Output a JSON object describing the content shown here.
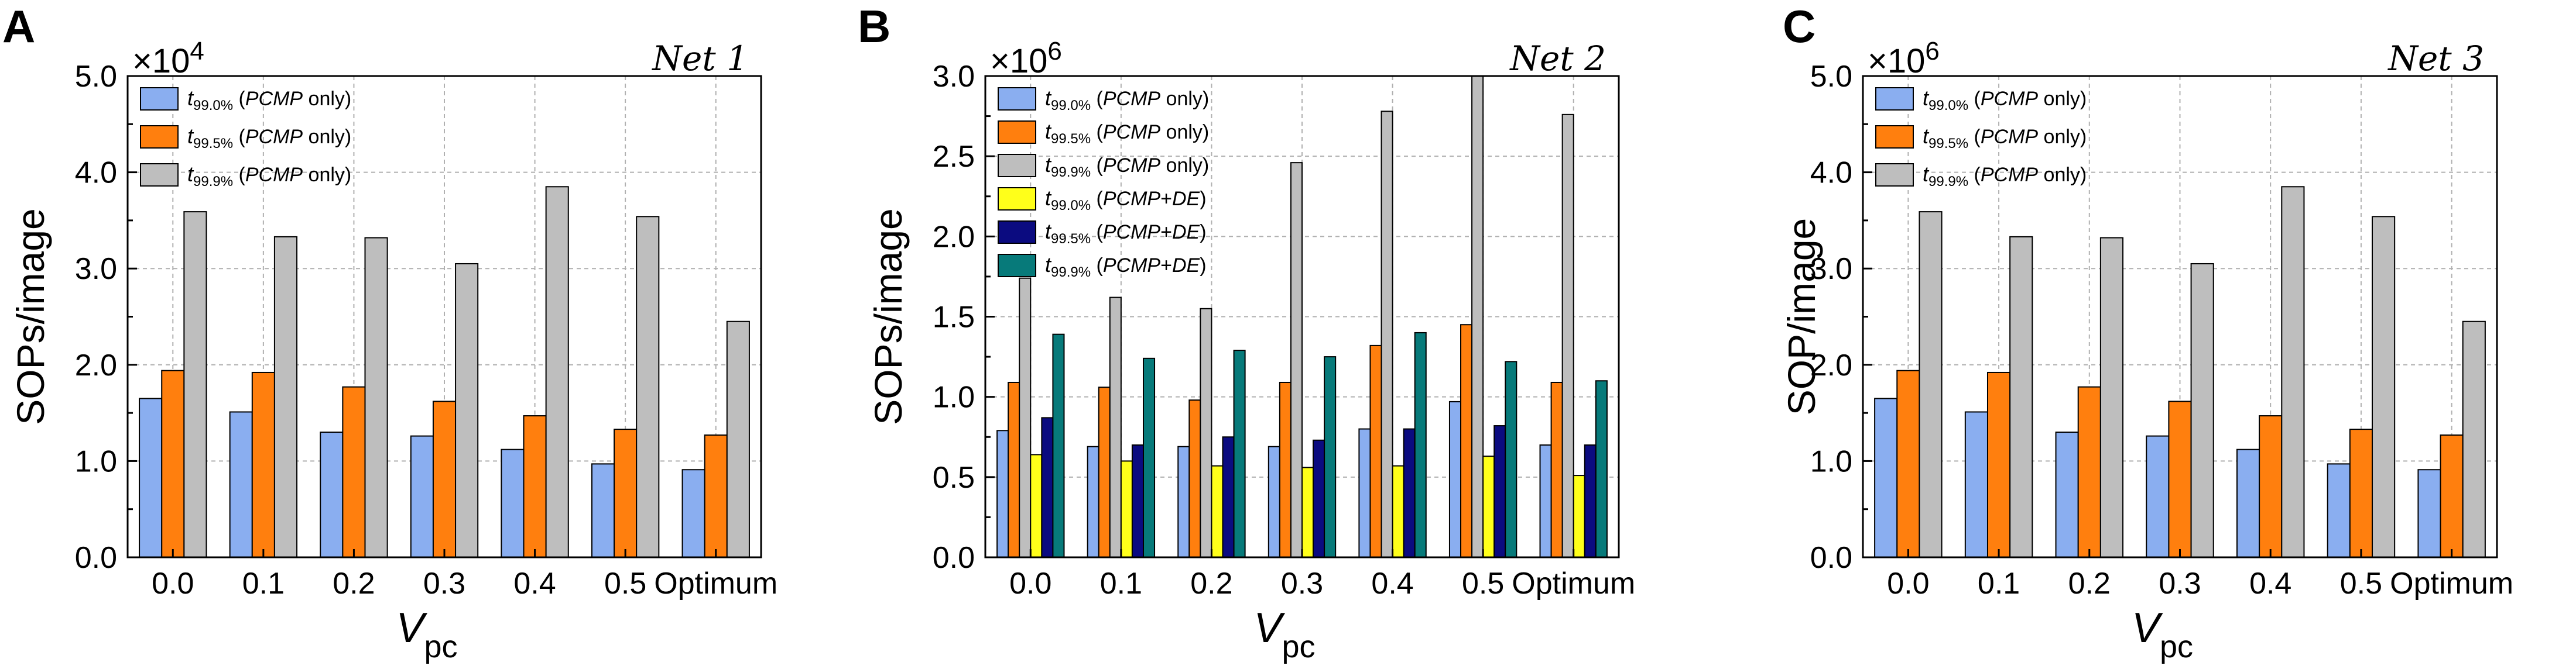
{
  "chart_data": [
    {
      "type": "bar",
      "panel": "A",
      "net_label": "Net 1",
      "ylabel": "SOPs/image",
      "xlabel_main": "V",
      "xlabel_sub": "pc",
      "multiplier_base": "×10",
      "multiplier_exp": "4",
      "ylim": [
        0,
        5.0
      ],
      "yticks": [
        "0.0",
        "1.0",
        "2.0",
        "3.0",
        "4.0",
        "5.0"
      ],
      "categories": [
        "0.0",
        "0.1",
        "0.2",
        "0.3",
        "0.4",
        "0.5",
        "Optimum"
      ],
      "grid": true,
      "legend_position": "top-left",
      "series": [
        {
          "name_t": "t",
          "name_sub": "99.0%",
          "name_rest": "(PCMP only)",
          "color": "#8AAEF0",
          "values": [
            1.65,
            1.51,
            1.3,
            1.26,
            1.12,
            0.97,
            0.91
          ]
        },
        {
          "name_t": "t",
          "name_sub": "99.5%",
          "name_rest": "(PCMP only)",
          "color": "#FF7F0E",
          "values": [
            1.94,
            1.92,
            1.77,
            1.62,
            1.47,
            1.33,
            1.27
          ]
        },
        {
          "name_t": "t",
          "name_sub": "99.9%",
          "name_rest": "(PCMP only)",
          "color": "#BEBEBE",
          "values": [
            3.59,
            3.33,
            3.32,
            3.05,
            3.85,
            3.54,
            2.45
          ]
        }
      ]
    },
    {
      "type": "bar",
      "panel": "B",
      "net_label": "Net 2",
      "ylabel": "SOPs/image",
      "xlabel_main": "V",
      "xlabel_sub": "pc",
      "multiplier_base": "×10",
      "multiplier_exp": "6",
      "ylim": [
        0,
        3.0
      ],
      "yticks": [
        "0.0",
        "0.5",
        "1.0",
        "1.5",
        "2.0",
        "2.5",
        "3.0"
      ],
      "categories": [
        "0.0",
        "0.1",
        "0.2",
        "0.3",
        "0.4",
        "0.5",
        "Optimum"
      ],
      "grid": true,
      "legend_position": "top-left",
      "series": [
        {
          "name_t": "t",
          "name_sub": "99.0%",
          "name_rest": "(PCMP only)",
          "color": "#8AAEF0",
          "values": [
            0.79,
            0.69,
            0.69,
            0.69,
            0.8,
            0.97,
            0.7
          ]
        },
        {
          "name_t": "t",
          "name_sub": "99.5%",
          "name_rest": "(PCMP only)",
          "color": "#FF7F0E",
          "values": [
            1.09,
            1.06,
            0.98,
            1.09,
            1.32,
            1.45,
            1.09
          ]
        },
        {
          "name_t": "t",
          "name_sub": "99.9%",
          "name_rest": "(PCMP only)",
          "color": "#BEBEBE",
          "values": [
            1.74,
            1.62,
            1.55,
            2.46,
            2.78,
            3.0,
            2.76
          ]
        },
        {
          "name_t": "t",
          "name_sub": "99.0%",
          "name_rest": "(PCMP+DE)",
          "color": "#FFFF1A",
          "values": [
            0.64,
            0.6,
            0.57,
            0.56,
            0.57,
            0.63,
            0.51
          ]
        },
        {
          "name_t": "t",
          "name_sub": "99.5%",
          "name_rest": "(PCMP+DE)",
          "color": "#0B0B80",
          "values": [
            0.87,
            0.7,
            0.75,
            0.73,
            0.8,
            0.82,
            0.7
          ]
        },
        {
          "name_t": "t",
          "name_sub": "99.9%",
          "name_rest": "(PCMP+DE)",
          "color": "#077A7A",
          "values": [
            1.39,
            1.24,
            1.29,
            1.25,
            1.4,
            1.22,
            1.1
          ]
        }
      ]
    },
    {
      "type": "bar",
      "panel": "C",
      "net_label": "Net 3",
      "ylabel": "SOP/image",
      "xlabel_main": "V",
      "xlabel_sub": "pc",
      "multiplier_base": "×10",
      "multiplier_exp": "6",
      "ylim": [
        0,
        5.0
      ],
      "yticks": [
        "0.0",
        "1.0",
        "2.0",
        "3.0",
        "4.0",
        "5.0"
      ],
      "categories": [
        "0.0",
        "0.1",
        "0.2",
        "0.3",
        "0.4",
        "0.5",
        "Optimum"
      ],
      "grid": true,
      "legend_position": "top-left",
      "series": [
        {
          "name_t": "t",
          "name_sub": "99.0%",
          "name_rest": "(PCMP only)",
          "color": "#8AAEF0",
          "values": [
            1.65,
            1.51,
            1.3,
            1.26,
            1.12,
            0.97,
            0.91
          ]
        },
        {
          "name_t": "t",
          "name_sub": "99.5%",
          "name_rest": "(PCMP only)",
          "color": "#FF7F0E",
          "values": [
            1.94,
            1.92,
            1.77,
            1.62,
            1.47,
            1.33,
            1.27
          ]
        },
        {
          "name_t": "t",
          "name_sub": "99.9%",
          "name_rest": "(PCMP only)",
          "color": "#BEBEBE",
          "values": [
            3.59,
            3.33,
            3.32,
            3.05,
            3.85,
            3.54,
            2.45
          ]
        }
      ]
    }
  ]
}
